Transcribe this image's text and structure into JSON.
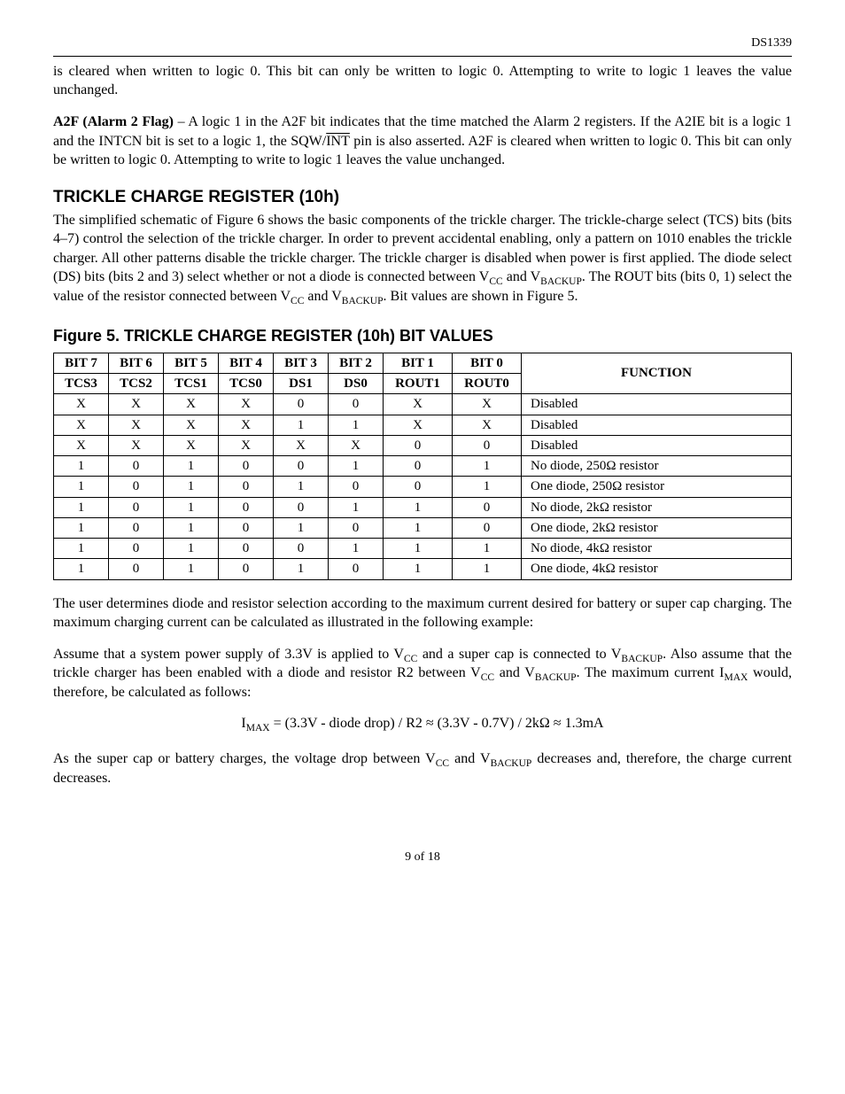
{
  "header": {
    "doc_id": "DS1339"
  },
  "para_a1f": "is cleared when written to logic 0. This bit can only be written to logic 0. Attempting to write to logic 1 leaves the value unchanged.",
  "a2f": {
    "label": "A2F (Alarm 2 Flag)",
    "pre": " – A logic 1 in the A2F bit indicates that the time matched the Alarm 2 registers. If the A2IE bit is a logic 1 and the INTCN bit is set to a logic 1, the SQW/",
    "int": "INT",
    "post": " pin is also asserted. A2F is cleared when written to logic 0. This bit can only be written to logic 0. Attempting to write to logic 1 leaves the value unchanged."
  },
  "trickle": {
    "heading": "TRICKLE CHARGE REGISTER (10h)",
    "p_pre": "The simplified schematic of Figure 6 shows the basic components of the trickle charger. The trickle-charge select (TCS) bits (bits 4–7) control the selection of the trickle charger. In order to prevent accidental enabling, only a pattern on 1010 enables the trickle charger. All other patterns disable the trickle charger. The trickle charger is disabled when power is first applied. The diode select (DS) bits (bits 2 and 3) select whether or not a diode is connected between V",
    "cc1": "CC",
    "p_mid1": " and V",
    "bk1": "BACKUP",
    "p_mid2": ". The ROUT bits (bits 0, 1) select the value of the resistor connected between V",
    "cc2": "CC",
    "p_mid3": " and V",
    "bk2": "BACKUP",
    "p_post": ". Bit values are shown in Figure 5."
  },
  "figure5": {
    "caption": "Figure 5. TRICKLE CHARGE REGISTER (10h) BIT VALUES",
    "header1": [
      "BIT 7",
      "BIT 6",
      "BIT 5",
      "BIT 4",
      "BIT 3",
      "BIT 2",
      "BIT 1",
      "BIT 0"
    ],
    "header2": [
      "TCS3",
      "TCS2",
      "TCS1",
      "TCS0",
      "DS1",
      "DS0",
      "ROUT1",
      "ROUT0"
    ],
    "func_label": "FUNCTION",
    "rows": [
      {
        "b": [
          "X",
          "X",
          "X",
          "X",
          "0",
          "0",
          "X",
          "X"
        ],
        "f": "Disabled"
      },
      {
        "b": [
          "X",
          "X",
          "X",
          "X",
          "1",
          "1",
          "X",
          "X"
        ],
        "f": "Disabled"
      },
      {
        "b": [
          "X",
          "X",
          "X",
          "X",
          "X",
          "X",
          "0",
          "0"
        ],
        "f": "Disabled"
      },
      {
        "b": [
          "1",
          "0",
          "1",
          "0",
          "0",
          "1",
          "0",
          "1"
        ],
        "f": "No diode, 250Ω resistor"
      },
      {
        "b": [
          "1",
          "0",
          "1",
          "0",
          "1",
          "0",
          "0",
          "1"
        ],
        "f": "One diode, 250Ω resistor"
      },
      {
        "b": [
          "1",
          "0",
          "1",
          "0",
          "0",
          "1",
          "1",
          "0"
        ],
        "f": "No diode, 2kΩ resistor"
      },
      {
        "b": [
          "1",
          "0",
          "1",
          "0",
          "1",
          "0",
          "1",
          "0"
        ],
        "f": "One diode, 2kΩ resistor"
      },
      {
        "b": [
          "1",
          "0",
          "1",
          "0",
          "0",
          "1",
          "1",
          "1"
        ],
        "f": "No diode, 4kΩ resistor"
      },
      {
        "b": [
          "1",
          "0",
          "1",
          "0",
          "1",
          "0",
          "1",
          "1"
        ],
        "f": "One diode, 4kΩ resistor"
      }
    ],
    "col_widths": [
      "62px",
      "62px",
      "62px",
      "62px",
      "62px",
      "62px",
      "78px",
      "78px",
      "auto"
    ]
  },
  "para_user": "The user determines diode and resistor selection according to the maximum current desired for battery or super cap charging. The maximum charging current can be calculated as illustrated in the following example:",
  "assume": {
    "pre": "Assume that a system power supply of 3.3V is applied to V",
    "cc1": "CC",
    "m1": " and a super cap is connected to V",
    "bk1": "BACKUP",
    "m2": ". Also assume that the trickle charger has been enabled with a diode and resistor R2 between V",
    "cc2": "CC",
    "m3": " and V",
    "bk2": "BACKUP",
    "m4": ". The maximum current I",
    "max1": "MAX",
    "post": " would, therefore, be calculated as follows:"
  },
  "formula": {
    "pre": "I",
    "sub": "MAX",
    "rest": " = (3.3V - diode drop) / R2 ≈ (3.3V - 0.7V) / 2kΩ ≈ 1.3mA"
  },
  "para_last": {
    "pre": "As the super cap or battery charges, the voltage drop between V",
    "cc": "CC",
    "m1": " and V",
    "bk": "BACKUP",
    "post": " decreases and, therefore, the charge current decreases."
  },
  "footer": "9 of 18"
}
